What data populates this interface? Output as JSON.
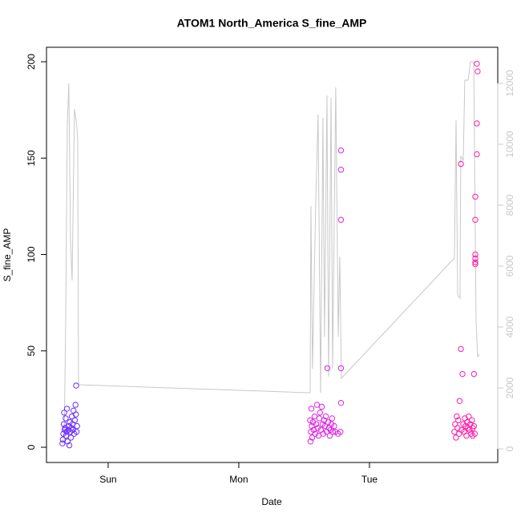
{
  "chart_data": {
    "type": "scatter",
    "title": "ATOM1 North_America S_fine_AMP",
    "xlabel": "Date",
    "ylabel": "S_fine_AMP",
    "xlim": [
      -0.472,
      2.982
    ],
    "xticks": [
      {
        "value": 0,
        "label": "Sun"
      },
      {
        "value": 1,
        "label": "Mon"
      },
      {
        "value": 2,
        "label": "Tue"
      }
    ],
    "ylim": [
      -7.9,
      207.5
    ],
    "yticks": [
      0,
      50,
      100,
      150,
      200
    ],
    "y2lim": [
      -447,
      13184
    ],
    "y2ticks": [
      0,
      2000,
      4000,
      6000,
      8000,
      10000,
      12000
    ],
    "y2color": "#c8c8c8",
    "series": [
      {
        "type": "scatter",
        "color": "#6a2cff",
        "x": [
          -0.35,
          -0.347,
          -0.343,
          -0.34,
          -0.337,
          -0.333,
          -0.33,
          -0.325,
          -0.322,
          -0.318,
          -0.315,
          -0.31,
          -0.306,
          -0.3,
          -0.297,
          -0.294,
          -0.29,
          -0.285,
          -0.282,
          -0.278,
          -0.273,
          -0.27,
          -0.265,
          -0.26,
          -0.255,
          -0.25,
          -0.247,
          -0.242,
          -0.238,
          -0.245
        ],
        "values": [
          2,
          4,
          7,
          12,
          18,
          9,
          10,
          15,
          6,
          8,
          20,
          3,
          9,
          11,
          1,
          13,
          8,
          5,
          10,
          16,
          12,
          9,
          19,
          7,
          14,
          22,
          17,
          8,
          11,
          32
        ]
      },
      {
        "type": "scatter",
        "color": "#e020e8",
        "x": [
          1.546,
          1.549,
          1.552,
          1.555,
          1.558,
          1.561,
          1.567,
          1.573,
          1.58,
          1.586,
          1.592,
          1.598,
          1.604,
          1.61,
          1.616,
          1.622,
          1.628,
          1.635,
          1.641,
          1.647,
          1.653,
          1.66,
          1.666,
          1.672,
          1.678,
          1.684,
          1.69,
          1.696,
          1.702,
          1.708,
          1.714,
          1.72,
          1.73,
          1.74,
          1.76,
          1.782,
          1.782,
          1.782,
          1.782,
          1.782,
          1.778
        ],
        "values": [
          14,
          3,
          8,
          20,
          11,
          5,
          13,
          9,
          16,
          7,
          12,
          22,
          10,
          6,
          15,
          18,
          9,
          21,
          12,
          7,
          14,
          11,
          16,
          8,
          41,
          13,
          10,
          6,
          9,
          12,
          15,
          8,
          11,
          8,
          7,
          154,
          144,
          118,
          41,
          23,
          8
        ]
      },
      {
        "type": "scatter",
        "color": "#ff1aa8",
        "x": [
          2.65,
          2.656,
          2.662,
          2.668,
          2.674,
          2.68,
          2.686,
          2.69,
          2.7,
          2.7,
          2.712,
          2.705,
          2.718,
          2.724,
          2.73,
          2.736,
          2.742,
          2.748,
          2.754,
          2.76,
          2.766,
          2.772,
          2.778,
          2.784,
          2.79,
          2.8,
          2.81,
          2.81,
          2.81,
          2.81,
          2.81,
          2.81,
          2.822,
          2.828,
          2.822,
          2.822,
          2.8,
          2.806,
          2.79
        ],
        "values": [
          8,
          12,
          5,
          16,
          10,
          14,
          7,
          24,
          147,
          51,
          38,
          9,
          12,
          8,
          15,
          11,
          6,
          13,
          10,
          16,
          9,
          12,
          7,
          14,
          10,
          38,
          130,
          118,
          100,
          98,
          96,
          95,
          199,
          195,
          168,
          152,
          11,
          7,
          6
        ]
      },
      {
        "type": "line",
        "axis": "y2",
        "color": "#c8c8c8",
        "x": [
          -0.337,
          -0.325,
          -0.313,
          -0.301,
          -0.288,
          -0.276,
          -0.258,
          -0.245,
          -0.239,
          -0.233,
          -0.227,
          1.546,
          1.552,
          1.564,
          1.589,
          1.607,
          1.626,
          1.644,
          1.656,
          1.675,
          1.687,
          1.706,
          1.718,
          1.742,
          1.761,
          1.773,
          1.785,
          2.65,
          2.663,
          2.675,
          2.693,
          2.699,
          2.718,
          2.73,
          2.755,
          2.773,
          2.798,
          2.816,
          2.828,
          2.84
        ],
        "values": [
          132,
          4211,
          10658,
          12000,
          6842,
          5526,
          11158,
          10789,
          10526,
          10132,
          2105,
          1842,
          7974,
          2632,
          8158,
          10974,
          1842,
          10868,
          3684,
          11605,
          2368,
          11526,
          2632,
          11868,
          3684,
          6316,
          2316,
          6263,
          10789,
          5053,
          4947,
          9605,
          9474,
          12105,
          12105,
          12711,
          12711,
          4211,
          3026,
          3105
        ]
      }
    ]
  }
}
